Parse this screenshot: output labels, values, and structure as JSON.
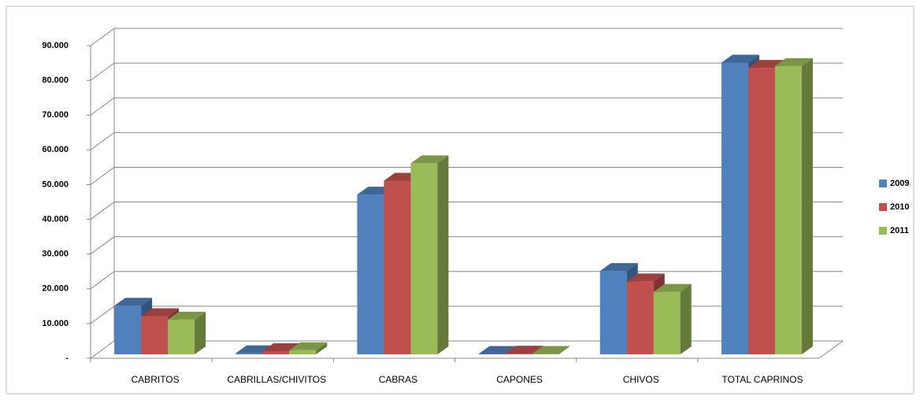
{
  "chart_data": {
    "type": "bar3d",
    "categories": [
      "CABRITOS",
      "CABRILLAS/CHIVITOS",
      "CABRAS",
      "CAPONES",
      "CHIVOS",
      "TOTAL CAPRINOS"
    ],
    "series": [
      {
        "name": "2009",
        "color": "#4f81bd",
        "values": [
          14000,
          300,
          46000,
          100,
          24000,
          84000
        ]
      },
      {
        "name": "2010",
        "color": "#c0504d",
        "values": [
          11000,
          900,
          50000,
          200,
          21000,
          82500
        ]
      },
      {
        "name": "2011",
        "color": "#9bbb59",
        "values": [
          10000,
          1200,
          55000,
          100,
          18000,
          83000
        ]
      }
    ],
    "ylim": [
      0,
      90000
    ],
    "yticks": [
      {
        "value": 0,
        "label": "-"
      },
      {
        "value": 10000,
        "label": "10.000"
      },
      {
        "value": 20000,
        "label": "20.000"
      },
      {
        "value": 30000,
        "label": "30.000"
      },
      {
        "value": 40000,
        "label": "40.000"
      },
      {
        "value": 50000,
        "label": "50.000"
      },
      {
        "value": 60000,
        "label": "60.000"
      },
      {
        "value": 70000,
        "label": "70.000"
      },
      {
        "value": 80000,
        "label": "80.000"
      },
      {
        "value": 90000,
        "label": "90.000"
      }
    ],
    "grid": true,
    "legend": "right"
  }
}
